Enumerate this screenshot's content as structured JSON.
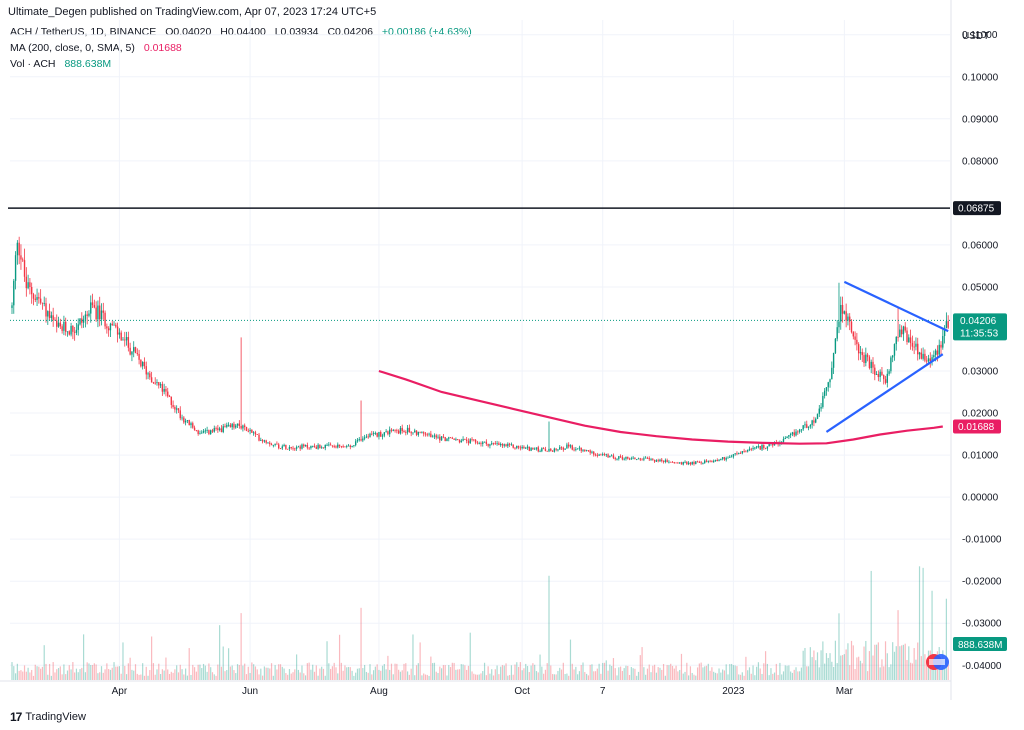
{
  "header": "Ultimate_Degen published on TradingView.com, Apr 07, 2023 17:24 UTC+5",
  "legend": {
    "symbol": "ACH / TetherUS, 1D, BINANCE",
    "o": "O0.04020",
    "h": "H0.04400",
    "l": "L0.03934",
    "c": "C0.04206",
    "change": "+0.00186 (+4.63%)",
    "ma_label": "MA (200, close, 0, SMA, 5)",
    "ma_value": "0.01688",
    "vol_label": "Vol · ACH",
    "vol_value": "888.638M"
  },
  "footer": {
    "brand": "TradingView",
    "logo": "17"
  },
  "colors": {
    "up": "#089981",
    "down": "#f23645",
    "ma": "#e91e63",
    "trend": "#2962ff",
    "resistance": "#131722"
  },
  "chart_data": {
    "type": "candlestick",
    "y_unit": "USDT",
    "ylim": [
      -0.0435,
      0.1135
    ],
    "y_ticks": [
      "0.11000",
      "0.10000",
      "0.09000",
      "0.08000",
      "0.06000",
      "0.05000",
      "0.03000",
      "0.02000",
      "0.01000",
      "0.00000",
      "-0.01000",
      "-0.02000",
      "-0.03000",
      "-0.04000"
    ],
    "x_ticks": [
      "Apr",
      "Jun",
      "Aug",
      "Oct",
      "7",
      "2023",
      "Mar"
    ],
    "last_price": "0.04206",
    "countdown": "11:35:53",
    "resistance_label": "0.06875",
    "resistance_value": 0.06875,
    "ma_label": "0.01688",
    "vol_label": "888.638M",
    "close_anchors": [
      [
        0,
        0.045
      ],
      [
        3,
        0.062
      ],
      [
        8,
        0.05
      ],
      [
        15,
        0.047
      ],
      [
        25,
        0.04
      ],
      [
        35,
        0.04
      ],
      [
        45,
        0.045
      ],
      [
        55,
        0.041
      ],
      [
        65,
        0.036
      ],
      [
        75,
        0.03
      ],
      [
        85,
        0.025
      ],
      [
        95,
        0.019
      ],
      [
        105,
        0.015
      ],
      [
        115,
        0.016
      ],
      [
        125,
        0.017
      ],
      [
        132,
        0.016
      ],
      [
        138,
        0.014
      ],
      [
        150,
        0.012
      ],
      [
        170,
        0.012
      ],
      [
        190,
        0.012
      ],
      [
        195,
        0.014
      ],
      [
        205,
        0.015
      ],
      [
        220,
        0.016
      ],
      [
        240,
        0.014
      ],
      [
        260,
        0.013
      ],
      [
        280,
        0.012
      ],
      [
        300,
        0.011
      ],
      [
        310,
        0.012
      ],
      [
        320,
        0.011
      ],
      [
        335,
        0.0095
      ],
      [
        355,
        0.009
      ],
      [
        375,
        0.008
      ],
      [
        390,
        0.0085
      ],
      [
        400,
        0.0095
      ],
      [
        410,
        0.011
      ],
      [
        420,
        0.012
      ],
      [
        430,
        0.013
      ],
      [
        440,
        0.016
      ],
      [
        450,
        0.019
      ],
      [
        458,
        0.03
      ],
      [
        463,
        0.046
      ],
      [
        468,
        0.041
      ],
      [
        473,
        0.035
      ],
      [
        478,
        0.032
      ],
      [
        483,
        0.029
      ],
      [
        488,
        0.028
      ],
      [
        493,
        0.036
      ],
      [
        498,
        0.04
      ],
      [
        503,
        0.036
      ],
      [
        508,
        0.034
      ],
      [
        513,
        0.033
      ],
      [
        518,
        0.036
      ],
      [
        523,
        0.042
      ]
    ],
    "spikes": [
      [
        128,
        0.038
      ],
      [
        195,
        0.023
      ],
      [
        300,
        0.018
      ],
      [
        462,
        0.051
      ],
      [
        495,
        0.045
      ]
    ],
    "resistance_segment": [
      0,
      523
    ],
    "ma_series": [
      [
        205,
        0.03
      ],
      [
        220,
        0.028
      ],
      [
        240,
        0.025
      ],
      [
        260,
        0.023
      ],
      [
        280,
        0.021
      ],
      [
        300,
        0.019
      ],
      [
        320,
        0.017
      ],
      [
        340,
        0.0155
      ],
      [
        360,
        0.0145
      ],
      [
        380,
        0.0137
      ],
      [
        400,
        0.0132
      ],
      [
        420,
        0.0129
      ],
      [
        440,
        0.0127
      ],
      [
        455,
        0.0128
      ],
      [
        470,
        0.0137
      ],
      [
        485,
        0.0149
      ],
      [
        500,
        0.0158
      ],
      [
        515,
        0.0165
      ],
      [
        520,
        0.0168
      ]
    ],
    "triangle": {
      "upper": [
        [
          465,
          0.0512
        ],
        [
          523,
          0.0395
        ]
      ],
      "lower": [
        [
          455,
          0.0155
        ],
        [
          520,
          0.034
        ]
      ]
    }
  }
}
